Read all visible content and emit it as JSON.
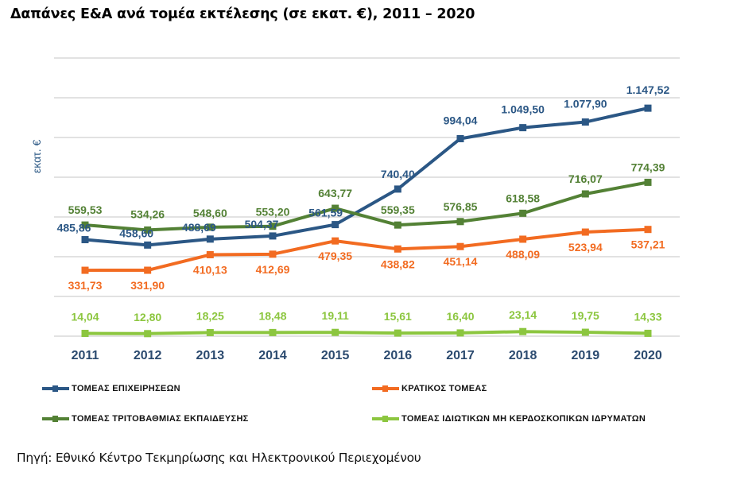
{
  "chart_data": {
    "type": "line",
    "title": "Δαπάνες Ε&Α ανά τομέα εκτέλεσης (σε εκατ. €), 2011 – 2020",
    "xlabel": "",
    "ylabel": "εκατ. €",
    "ylim": [
      0,
      1400
    ],
    "ytick_step": 200,
    "grid": true,
    "legend_position": "bottom",
    "categories": [
      "2011",
      "2012",
      "2013",
      "2014",
      "2015",
      "2016",
      "2017",
      "2018",
      "2019",
      "2020"
    ],
    "series": [
      {
        "name": "ΤΟΜΕΑΣ ΕΠΙΧΕΙΡΗΣΕΩΝ",
        "color": "#2b5785",
        "values": [
          485.86,
          458.6,
          488.69,
          504.37,
          561.59,
          740.4,
          994.04,
          1049.5,
          1077.9,
          1147.52
        ],
        "labels": [
          "485,86",
          "458,60",
          "488,69",
          "504,37",
          "561,59",
          "740,40",
          "994,04",
          "1.049,50",
          "1.077,90",
          "1.147,52"
        ]
      },
      {
        "name": "ΚΡΑΤΙΚΟΣ ΤΟΜΕΑΣ",
        "color": "#f26b21",
        "values": [
          331.73,
          331.9,
          410.13,
          412.69,
          479.35,
          438.82,
          451.14,
          488.09,
          523.94,
          537.21
        ],
        "labels": [
          "331,73",
          "331,90",
          "410,13",
          "412,69",
          "479,35",
          "438,82",
          "451,14",
          "488,09",
          "523,94",
          "537,21"
        ]
      },
      {
        "name": "ΤΟΜΕΑΣ ΤΡΙΤΟΒΑΘΜΙΑΣ ΕΚΠΑΙΔΕΥΣΗΣ",
        "color": "#538135",
        "values": [
          559.53,
          534.26,
          548.6,
          553.2,
          643.77,
          559.35,
          576.85,
          618.58,
          716.07,
          774.39
        ],
        "labels": [
          "559,53",
          "534,26",
          "548,60",
          "553,20",
          "643,77",
          "559,35",
          "576,85",
          "618,58",
          "716,07",
          "774,39"
        ]
      },
      {
        "name": "ΤΟΜΕΑΣ ΙΔΙΩΤΙΚΩΝ ΜΗ ΚΕΡΔΟΣΚΟΠΙΚΩΝ ΙΔΡΥΜΑΤΩΝ",
        "color": "#8cc63f",
        "values": [
          14.04,
          12.8,
          18.25,
          18.48,
          19.11,
          15.61,
          16.4,
          23.14,
          19.75,
          14.33
        ],
        "labels": [
          "14,04",
          "12,80",
          "18,25",
          "18,48",
          "19,11",
          "15,61",
          "16,40",
          "23,14",
          "19,75",
          "14,33"
        ]
      }
    ]
  },
  "source": "Πηγή: Εθνικό Κέντρο Τεκμηρίωσης και Ηλεκτρονικού Περιεχομένου"
}
